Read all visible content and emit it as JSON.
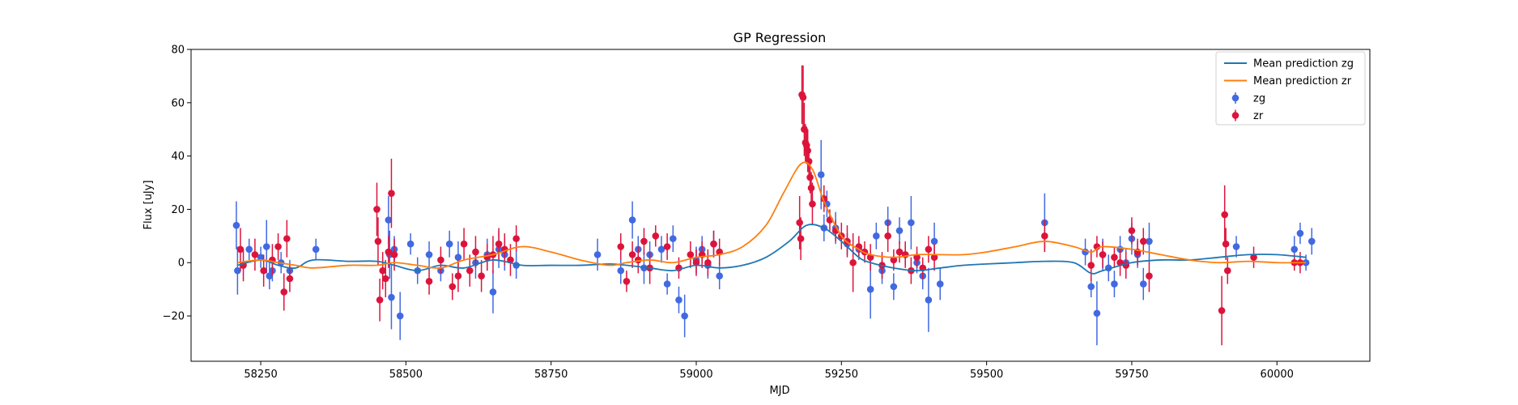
{
  "chart_data": {
    "type": "scatter",
    "title": "GP Regression",
    "xlabel": "MJD",
    "ylabel": "Flux [uJy]",
    "xlim": [
      58130,
      60160
    ],
    "ylim": [
      -37,
      80
    ],
    "xticks": [
      58250,
      58500,
      58750,
      59000,
      59250,
      59500,
      59750,
      60000
    ],
    "yticks": [
      -20,
      0,
      20,
      40,
      60,
      80
    ],
    "ytick_labels": [
      "−20",
      "0",
      "20",
      "40",
      "60",
      "80"
    ],
    "legend": {
      "position": "top-right"
    },
    "colors": {
      "zg": "#4169e1",
      "zr": "#dc143c",
      "mean_zg": "#1f77b4",
      "mean_zr": "#ff7f0e"
    },
    "lines": [
      {
        "name": "Mean prediction zg",
        "color": "#1f77b4",
        "x": [
          58210,
          58250,
          58280,
          58310,
          58340,
          58400,
          58450,
          58480,
          58520,
          58560,
          58600,
          58650,
          58700,
          58750,
          58800,
          58850,
          58880,
          58920,
          58960,
          59000,
          59040,
          59080,
          59120,
          59160,
          59190,
          59220,
          59250,
          59280,
          59300,
          59340,
          59380,
          59420,
          59460,
          59500,
          59550,
          59600,
          59650,
          59680,
          59700,
          59750,
          59800,
          59850,
          59900,
          59950,
          60000,
          60050
        ],
        "y": [
          -1,
          1,
          -1,
          -2,
          1,
          0.5,
          0.5,
          -1,
          -3,
          -1,
          -2,
          1,
          -1,
          -1,
          -1,
          -0.5,
          -1,
          -2,
          -3,
          -1,
          -2,
          -1,
          2,
          8,
          14,
          13,
          8,
          2,
          0,
          -2,
          -3,
          -2,
          -1,
          -0.5,
          0,
          0.5,
          0,
          -4,
          -3,
          0,
          1,
          1,
          2,
          3,
          3,
          2
        ]
      },
      {
        "name": "Mean prediction zr",
        "color": "#ff7f0e",
        "x": [
          58210,
          58250,
          58280,
          58310,
          58340,
          58400,
          58450,
          58480,
          58520,
          58560,
          58600,
          58650,
          58700,
          58750,
          58800,
          58850,
          58880,
          58920,
          58960,
          59000,
          59040,
          59080,
          59120,
          59150,
          59180,
          59200,
          59220,
          59250,
          59280,
          59300,
          59340,
          59380,
          59420,
          59460,
          59500,
          59550,
          59600,
          59650,
          59680,
          59700,
          59750,
          59800,
          59850,
          59900,
          59950,
          60000,
          60050
        ],
        "y": [
          0,
          1,
          0,
          -1,
          -2,
          -1,
          -1,
          0,
          -1,
          -2,
          1,
          3,
          6,
          4,
          1,
          -1,
          0,
          1,
          0,
          2,
          3,
          6,
          14,
          26,
          37,
          35,
          23,
          10,
          5,
          3,
          2,
          3,
          3,
          3,
          4,
          6,
          8,
          6,
          4,
          6,
          5,
          3,
          1,
          0,
          0.5,
          0,
          0
        ]
      }
    ],
    "series": [
      {
        "name": "zg",
        "color": "#4169e1",
        "x": [
          58208,
          58210,
          58230,
          58250,
          58260,
          58265,
          58270,
          58285,
          58300,
          58345,
          58470,
          58472,
          58475,
          58480,
          58490,
          58508,
          58520,
          58540,
          58560,
          58575,
          58590,
          58620,
          58640,
          58650,
          58660,
          58670,
          58690,
          58830,
          58870,
          58890,
          58900,
          58910,
          58920,
          58940,
          58950,
          58960,
          58970,
          58980,
          59000,
          59010,
          59020,
          59030,
          59040,
          59215,
          59220,
          59225,
          59240,
          59260,
          59280,
          59300,
          59310,
          59320,
          59330,
          59340,
          59350,
          59360,
          59370,
          59380,
          59390,
          59400,
          59410,
          59420,
          59600,
          59670,
          59680,
          59690,
          59700,
          59710,
          59720,
          59730,
          59740,
          59750,
          59760,
          59770,
          59780,
          59930,
          60030,
          60040,
          60050,
          60060
        ],
        "y": [
          14,
          -3,
          5,
          2,
          6,
          -5,
          -3,
          0,
          -3,
          5,
          16,
          3,
          -13,
          5,
          -20,
          7,
          -3,
          3,
          -3,
          7,
          2,
          0,
          3,
          -11,
          5,
          3,
          -1,
          3,
          -3,
          16,
          5,
          -2,
          3,
          5,
          -8,
          9,
          -14,
          -20,
          1,
          5,
          -1,
          7,
          -5,
          33,
          13,
          22,
          13,
          7,
          5,
          -10,
          10,
          -3,
          15,
          -9,
          12,
          3,
          15,
          0,
          -5,
          -14,
          8,
          -8,
          15,
          4,
          -9,
          -19,
          3,
          -2,
          -8,
          5,
          0,
          9,
          3,
          -8,
          8,
          6,
          5,
          11,
          0,
          8
        ],
        "err": [
          9,
          9,
          4,
          4,
          10,
          5,
          4,
          4,
          4,
          4,
          9,
          9,
          12,
          5,
          9,
          4,
          5,
          5,
          4,
          5,
          6,
          6,
          6,
          8,
          7,
          6,
          5,
          6,
          5,
          7,
          5,
          6,
          5,
          5,
          4,
          5,
          5,
          8,
          5,
          5,
          5,
          5,
          5,
          13,
          5,
          5,
          6,
          4,
          4,
          11,
          5,
          5,
          6,
          5,
          5,
          4,
          10,
          4,
          5,
          12,
          7,
          6,
          11,
          5,
          4,
          12,
          6,
          5,
          5,
          5,
          5,
          6,
          5,
          6,
          7,
          4,
          5,
          4,
          3,
          5
        ]
      },
      {
        "name": "zr",
        "color": "#dc143c",
        "x": [
          58215,
          58220,
          58240,
          58255,
          58270,
          58280,
          58290,
          58295,
          58300,
          58450,
          58452,
          58455,
          58460,
          58465,
          58470,
          58475,
          58480,
          58540,
          58560,
          58580,
          58590,
          58600,
          58610,
          58620,
          58630,
          58640,
          58650,
          58660,
          58670,
          58680,
          58690,
          58870,
          58880,
          58890,
          58900,
          58910,
          58920,
          58930,
          58950,
          58970,
          58990,
          59000,
          59010,
          59020,
          59030,
          59040,
          59178,
          59180,
          59182,
          59184,
          59186,
          59188,
          59190,
          59192,
          59194,
          59196,
          59198,
          59200,
          59220,
          59230,
          59240,
          59250,
          59260,
          59270,
          59280,
          59290,
          59300,
          59320,
          59330,
          59340,
          59350,
          59360,
          59370,
          59380,
          59390,
          59400,
          59410,
          59600,
          59680,
          59690,
          59700,
          59720,
          59730,
          59740,
          59750,
          59760,
          59770,
          59780,
          59905,
          59910,
          59912,
          59915,
          59960,
          60030,
          60040
        ],
        "y": [
          5,
          -1,
          3,
          -3,
          1,
          6,
          -11,
          9,
          -6,
          20,
          8,
          -14,
          -3,
          -6,
          4,
          26,
          3,
          -7,
          1,
          -9,
          -5,
          7,
          -3,
          4,
          -5,
          2,
          3,
          7,
          5,
          1,
          9,
          6,
          -7,
          3,
          1,
          8,
          -2,
          10,
          6,
          -2,
          3,
          0,
          3,
          0,
          7,
          4,
          15,
          9,
          63,
          62,
          50,
          45,
          44,
          42,
          38,
          32,
          28,
          22,
          24,
          16,
          12,
          10,
          8,
          0,
          6,
          4,
          2,
          -1,
          10,
          1,
          4,
          3,
          -3,
          2,
          -2,
          5,
          2,
          10,
          -1,
          6,
          3,
          2,
          0,
          -1,
          12,
          4,
          8,
          -5,
          -18,
          18,
          7,
          -3,
          2,
          0,
          0
        ],
        "err": [
          8,
          6,
          6,
          6,
          6,
          5,
          7,
          7,
          5,
          10,
          9,
          8,
          7,
          7,
          6,
          13,
          6,
          5,
          5,
          5,
          6,
          6,
          6,
          6,
          6,
          5,
          7,
          6,
          6,
          6,
          5,
          5,
          4,
          5,
          5,
          5,
          6,
          4,
          5,
          4,
          5,
          5,
          5,
          5,
          5,
          5,
          10,
          8,
          11,
          12,
          10,
          7,
          7,
          8,
          6,
          6,
          6,
          8,
          5,
          4,
          4,
          5,
          6,
          11,
          4,
          4,
          5,
          5,
          6,
          4,
          4,
          5,
          5,
          4,
          4,
          5,
          5,
          6,
          6,
          4,
          5,
          4,
          5,
          5,
          5,
          5,
          5,
          6,
          13,
          11,
          6,
          5,
          4,
          3,
          4
        ]
      }
    ]
  }
}
